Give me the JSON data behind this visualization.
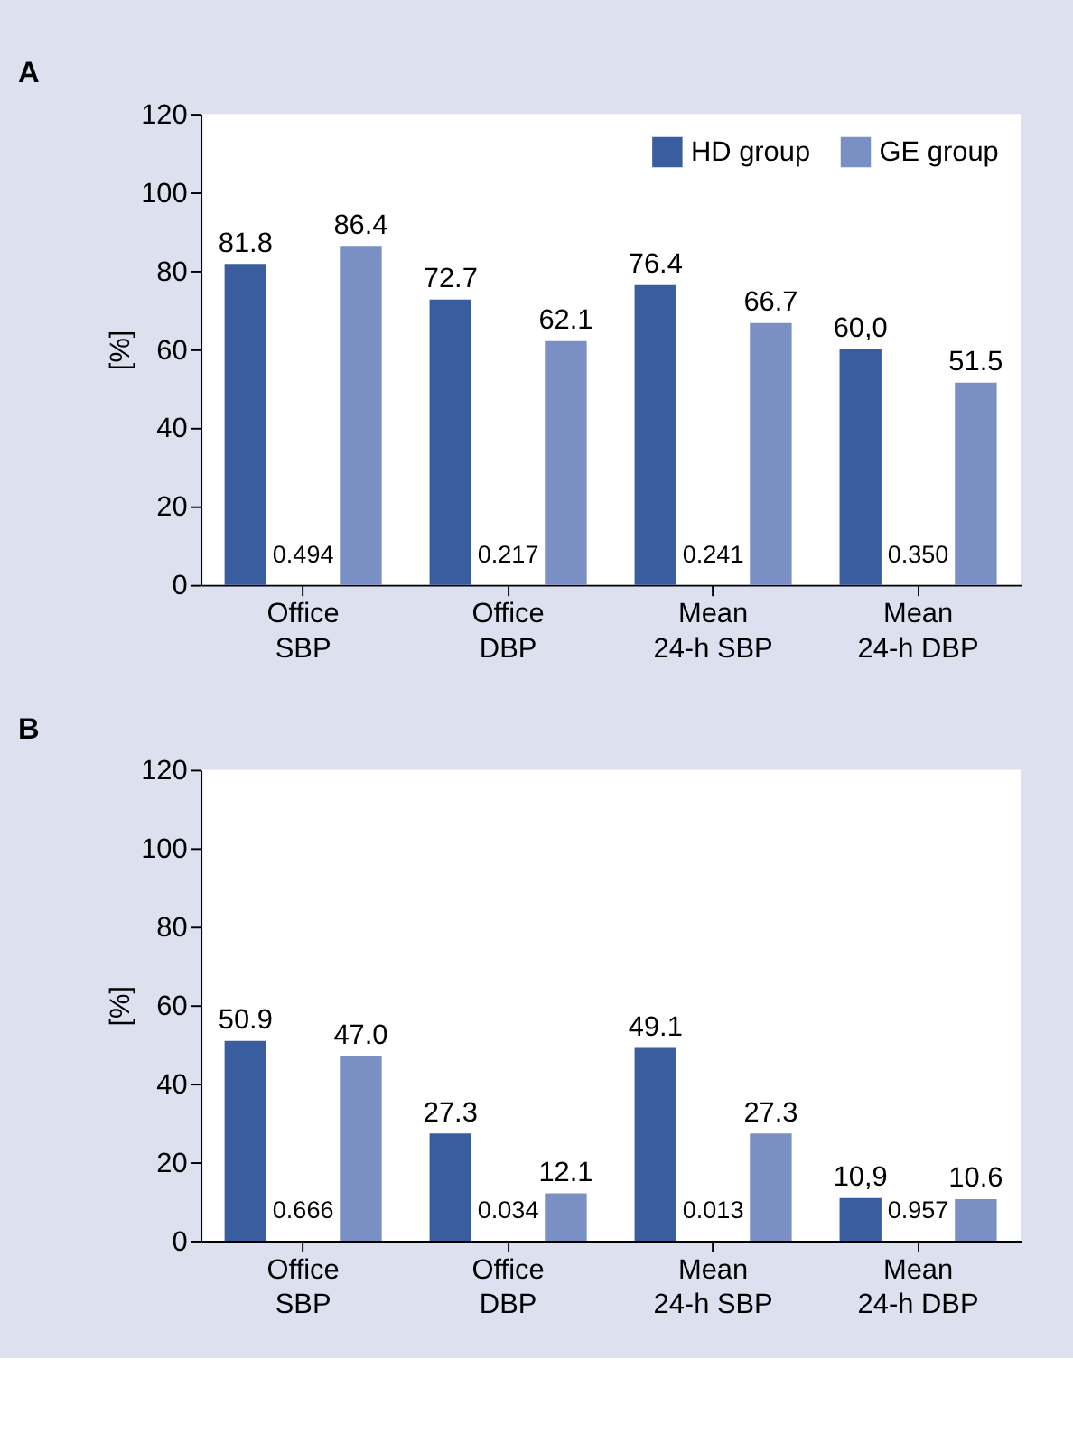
{
  "chart_data": [
    {
      "type": "bar",
      "title": "A",
      "ylabel": "[%]",
      "categories": [
        "Office\nSBP",
        "Office\nDBP",
        "Mean\n24-h SBP",
        "Mean\n24-h DBP"
      ],
      "series": [
        {
          "name": "HD group",
          "color": "#3a5d9f",
          "values": [
            81.8,
            72.7,
            76.4,
            60.0
          ],
          "value_labels": [
            "81.8",
            "72.7",
            "76.4",
            "60,0"
          ]
        },
        {
          "name": "GE group",
          "color": "#7a8fc3",
          "values": [
            86.4,
            62.1,
            66.7,
            51.5
          ],
          "value_labels": [
            "86.4",
            "62.1",
            "66.7",
            "51.5"
          ]
        }
      ],
      "ylim": [
        0,
        120
      ],
      "yticks": [
        0,
        20,
        40,
        60,
        80,
        100,
        120
      ],
      "legend": "top right",
      "grid": false,
      "annotations": [
        "0.494",
        "0.217",
        "0.241",
        "0.350"
      ]
    },
    {
      "type": "bar",
      "title": "B",
      "ylabel": "[%]",
      "categories": [
        "Office\nSBP",
        "Office\nDBP",
        "Mean\n24-h SBP",
        "Mean\n24-h DBP"
      ],
      "series": [
        {
          "name": "HD group",
          "color": "#3a5d9f",
          "values": [
            50.9,
            27.3,
            49.1,
            10.9
          ],
          "value_labels": [
            "50.9",
            "27.3",
            "49.1",
            "10,9"
          ]
        },
        {
          "name": "GE group",
          "color": "#7a8fc3",
          "values": [
            47.0,
            12.1,
            27.3,
            10.6
          ],
          "value_labels": [
            "47.0",
            "12.1",
            "27.3",
            "10.6"
          ]
        }
      ],
      "ylim": [
        0,
        120
      ],
      "yticks": [
        0,
        20,
        40,
        60,
        80,
        100,
        120
      ],
      "legend": "top right",
      "grid": false,
      "annotations": [
        "0.666",
        "0.034",
        "0.013",
        "0.957"
      ]
    }
  ]
}
